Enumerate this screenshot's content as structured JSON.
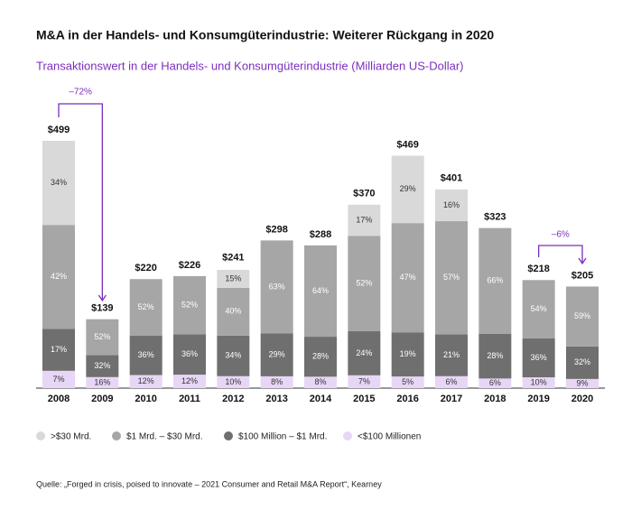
{
  "chart_data": {
    "type": "stacked_bar",
    "title": "M&A in der Handels- und Konsumgüterindustrie: Weiterer Rückgang in 2020",
    "subtitle": "Transaktionswert in der Handels- und Konsumgüterindustrie  (Milliarden US-Dollar)",
    "categories": [
      "2008",
      "2009",
      "2010",
      "2011",
      "2012",
      "2013",
      "2014",
      "2015",
      "2016",
      "2017",
      "2018",
      "2019",
      "2020"
    ],
    "totals": {
      "values": [
        499,
        139,
        220,
        226,
        241,
        298,
        288,
        370,
        469,
        401,
        323,
        218,
        205
      ],
      "value_labels": [
        "$499",
        "$139",
        "$220",
        "$226",
        "$241",
        "$298",
        "$288",
        "$370",
        "$469",
        "$401",
        "$323",
        "$218",
        "$205"
      ]
    },
    "series": [
      {
        "name": ">$30 Mrd.",
        "color": "#d9d9d9",
        "values": [
          34,
          null,
          null,
          null,
          15,
          null,
          null,
          17,
          29,
          16,
          null,
          null,
          null
        ],
        "value_labels": [
          "34%",
          null,
          null,
          null,
          "15%",
          null,
          null,
          "17%",
          "29%",
          "16%",
          null,
          null,
          null
        ]
      },
      {
        "name": "$1 Mrd. – $30 Mrd.",
        "color": "#a6a6a6",
        "values": [
          42,
          52,
          52,
          52,
          40,
          63,
          64,
          52,
          47,
          57,
          66,
          54,
          59
        ],
        "value_labels": [
          "42%",
          "52%",
          "52%",
          "52%",
          "40%",
          "63%",
          "64%",
          "52%",
          "47%",
          "57%",
          "66%",
          "54%",
          "59%"
        ]
      },
      {
        "name": "$100 Million – $1 Mrd.",
        "color": "#6f6f6f",
        "values": [
          17,
          32,
          36,
          36,
          34,
          29,
          28,
          24,
          19,
          21,
          28,
          36,
          32
        ],
        "value_labels": [
          "17%",
          "32%",
          "36%",
          "36%",
          "34%",
          "29%",
          "28%",
          "24%",
          "19%",
          "21%",
          "28%",
          "36%",
          "32%"
        ]
      },
      {
        "name": "<$100 Millionen",
        "color": "#e7d6f6",
        "values": [
          7,
          16,
          12,
          12,
          10,
          8,
          8,
          7,
          5,
          6,
          6,
          10,
          9
        ],
        "value_labels": [
          "7%",
          "16%",
          "12%",
          "12%",
          "10%",
          "8%",
          "8%",
          "7%",
          "5%",
          "6%",
          "6%",
          "10%",
          "9%"
        ]
      }
    ],
    "annotations": [
      "–72%",
      "–6%"
    ],
    "source": "Quelle: „Forged in crisis, poised to innovate – 2021 Consumer and Retail M&A Report“, Kearney"
  }
}
